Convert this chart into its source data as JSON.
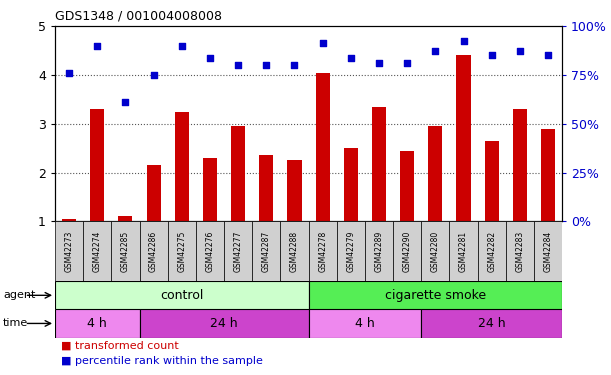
{
  "title": "GDS1348 / 001004008008",
  "samples": [
    "GSM42273",
    "GSM42274",
    "GSM42285",
    "GSM42286",
    "GSM42275",
    "GSM42276",
    "GSM42277",
    "GSM42287",
    "GSM42288",
    "GSM42278",
    "GSM42279",
    "GSM42289",
    "GSM42290",
    "GSM42280",
    "GSM42281",
    "GSM42282",
    "GSM42283",
    "GSM42284"
  ],
  "red_values": [
    1.05,
    3.3,
    1.1,
    2.15,
    3.25,
    2.3,
    2.95,
    2.35,
    2.25,
    4.05,
    2.5,
    3.35,
    2.45,
    2.95,
    4.4,
    2.65,
    3.3,
    2.9
  ],
  "blue_values": [
    4.05,
    4.6,
    3.45,
    4.0,
    4.6,
    4.35,
    4.2,
    4.2,
    4.2,
    4.65,
    4.35,
    4.25,
    4.25,
    4.5,
    4.7,
    4.4,
    4.5,
    4.4
  ],
  "ylim_left": [
    1,
    5
  ],
  "ylim_right": [
    0,
    100
  ],
  "yticks_left": [
    1,
    2,
    3,
    4,
    5
  ],
  "yticks_right": [
    0,
    25,
    50,
    75,
    100
  ],
  "ytick_labels_right": [
    "0%",
    "25%",
    "50%",
    "75%",
    "100%"
  ],
  "red_color": "#cc0000",
  "blue_color": "#0000cc",
  "bar_base": 1.0,
  "agent_control_color": "#ccffcc",
  "agent_smoke_color": "#55ee55",
  "time_4h_color": "#ee88ee",
  "time_24h_color": "#cc44cc",
  "agent_control_label": "control",
  "agent_smoke_label": "cigarette smoke",
  "time_labels": [
    "4 h",
    "24 h",
    "4 h",
    "24 h"
  ],
  "control_count": 9,
  "control_4h_count": 3,
  "control_24h_count": 6,
  "smoke_count": 9,
  "smoke_4h_count": 4,
  "smoke_24h_count": 5,
  "legend_red": "transformed count",
  "legend_blue": "percentile rank within the sample",
  "grid_color": "#555555",
  "tick_label_color_right": "#0000cc",
  "tick_box_color": "#d0d0d0",
  "white": "#ffffff"
}
